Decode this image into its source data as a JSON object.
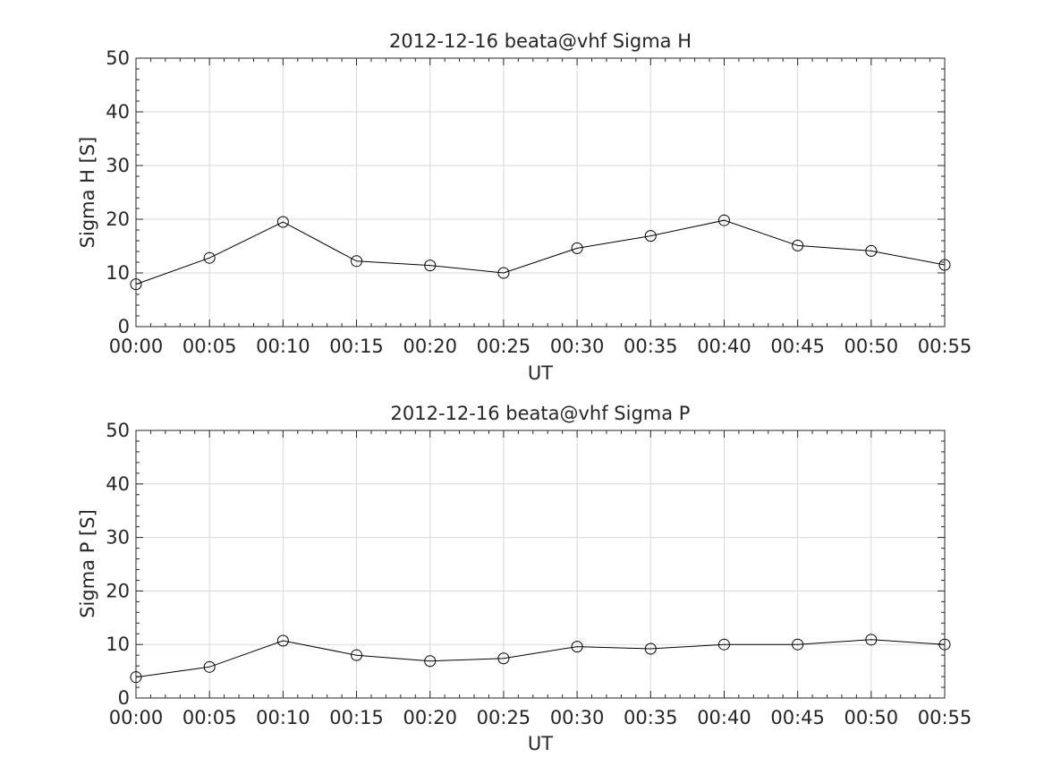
{
  "chart_data": [
    {
      "type": "line",
      "title": "2012-12-16  beata@vhf Sigma H",
      "xlabel": "UT",
      "ylabel": "Sigma H [S]",
      "categories": [
        "00:00",
        "00:05",
        "00:10",
        "00:15",
        "00:20",
        "00:25",
        "00:30",
        "00:35",
        "00:40",
        "00:45",
        "00:50",
        "00:55"
      ],
      "x_tick_labels": [
        "00:00",
        "00:05",
        "00:10",
        "00:15",
        "00:20",
        "00:25",
        "00:30",
        "00:35",
        "00:40",
        "00:45",
        "00:50",
        "00:55"
      ],
      "y_tick_labels": [
        "0",
        "10",
        "20",
        "30",
        "40",
        "50"
      ],
      "values": [
        7.9,
        12.8,
        19.5,
        12.2,
        11.4,
        10.0,
        14.6,
        16.9,
        19.8,
        15.1,
        14.1,
        11.5
      ],
      "ylim": [
        0,
        50
      ],
      "grid": true,
      "marker": "circle",
      "line_color": "#000000"
    },
    {
      "type": "line",
      "title": "2012-12-16  beata@vhf Sigma P",
      "xlabel": "UT",
      "ylabel": "Sigma P [S]",
      "categories": [
        "00:00",
        "00:05",
        "00:10",
        "00:15",
        "00:20",
        "00:25",
        "00:30",
        "00:35",
        "00:40",
        "00:45",
        "00:50",
        "00:55"
      ],
      "x_tick_labels": [
        "00:00",
        "00:05",
        "00:10",
        "00:15",
        "00:20",
        "00:25",
        "00:30",
        "00:35",
        "00:40",
        "00:45",
        "00:50",
        "00:55"
      ],
      "y_tick_labels": [
        "0",
        "10",
        "20",
        "30",
        "40",
        "50"
      ],
      "values": [
        3.9,
        5.8,
        10.7,
        8.0,
        6.9,
        7.4,
        9.6,
        9.2,
        10.0,
        10.0,
        10.9,
        10.0
      ],
      "ylim": [
        0,
        50
      ],
      "grid": true,
      "marker": "circle",
      "line_color": "#000000"
    }
  ]
}
